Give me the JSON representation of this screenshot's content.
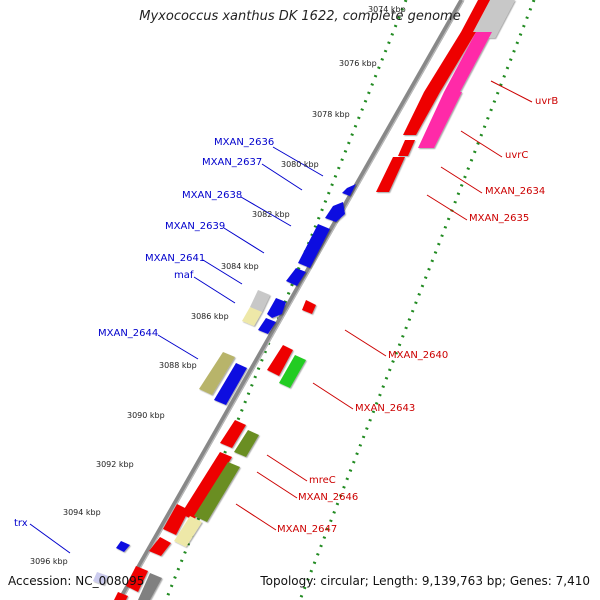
{
  "title": "Myxococcus xanthus DK 1622, complete genome",
  "footer": {
    "accession": "Accession: NC_008095",
    "summary": "Topology: circular; Length: 9,139,763 bp; Genes: 7,410"
  },
  "ticks": [
    "3074 kbp",
    "3076 kbp",
    "3078 kbp",
    "3080 kbp",
    "3082 kbp",
    "3084 kbp",
    "3086 kbp",
    "3088 kbp",
    "3090 kbp",
    "3092 kbp",
    "3094 kbp",
    "3096 kbp"
  ],
  "labels_left": [
    "MXAN_2636",
    "MXAN_2637",
    "MXAN_2638",
    "MXAN_2639",
    "MXAN_2641",
    "maf",
    "MXAN_2644",
    "trx"
  ],
  "labels_right": [
    "uvrB",
    "uvrC",
    "MXAN_2634",
    "MXAN_2635",
    "MXAN_2640",
    "MXAN_2643",
    "mreC",
    "MXAN_2646",
    "MXAN_2647"
  ],
  "colors": {
    "forward_red": "#ee0000",
    "reverse_blue": "#1010e0",
    "magenta": "#ff2aa8",
    "grey": "#c8c8c8",
    "pale_yellow": "#eee8a8",
    "olive": "#6b8e23",
    "khaki": "#b8b46a",
    "green": "#22cc22",
    "dark_grey": "#808080",
    "label_left": "#0000cc",
    "label_right": "#cc0000",
    "backbone": "#888888",
    "tick_green": "#228b22"
  }
}
